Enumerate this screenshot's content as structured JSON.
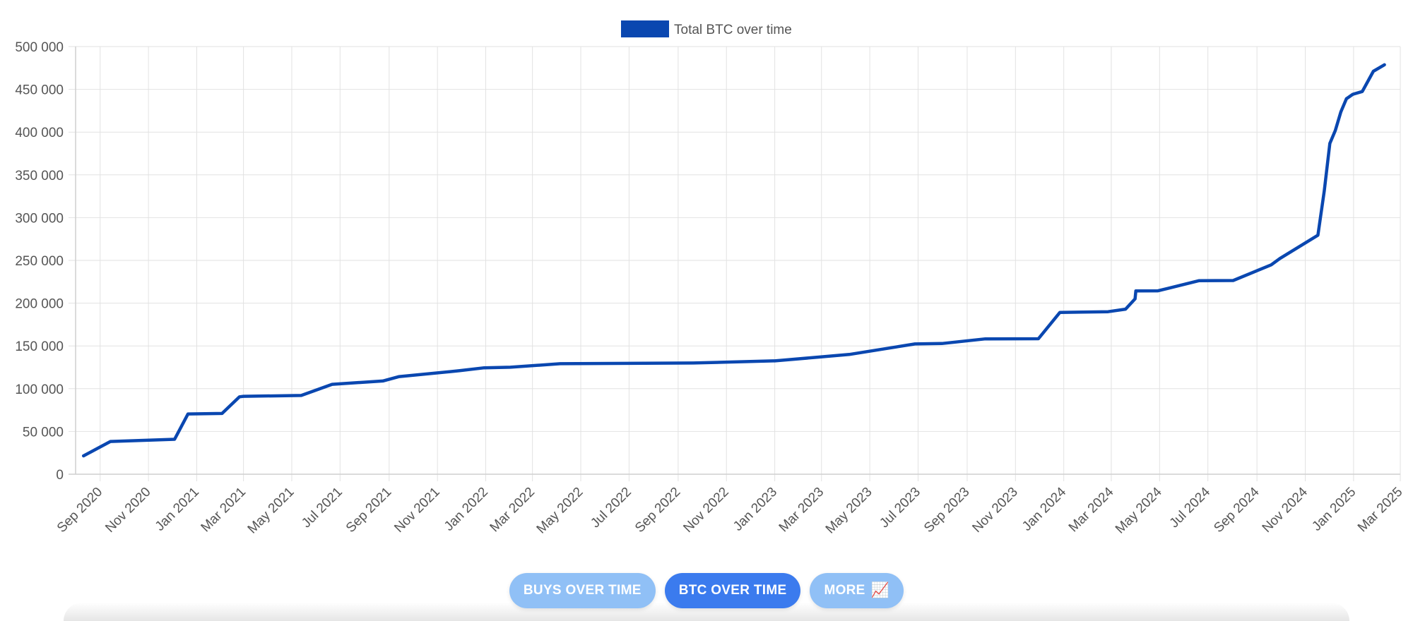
{
  "chart_data": {
    "type": "line",
    "title": "",
    "xlabel": "",
    "ylabel": "",
    "legend": {
      "position": "top-center",
      "entries": [
        "Total BTC over time"
      ]
    },
    "ylim": [
      0,
      500000
    ],
    "xlim": [
      "2020-08-01",
      "2025-03-01"
    ],
    "grid": true,
    "y_ticks": [
      "0",
      "50 000",
      "100 000",
      "150 000",
      "200 000",
      "250 000",
      "300 000",
      "350 000",
      "400 000",
      "450 000",
      "500 000"
    ],
    "x_ticks": [
      "Sep 2020",
      "Nov 2020",
      "Jan 2021",
      "Mar 2021",
      "May 2021",
      "Jul 2021",
      "Sep 2021",
      "Nov 2021",
      "Jan 2022",
      "Mar 2022",
      "May 2022",
      "Jul 2022",
      "Sep 2022",
      "Nov 2022",
      "Jan 2023",
      "Mar 2023",
      "May 2023",
      "Jul 2023",
      "Sep 2023",
      "Nov 2023",
      "Jan 2024",
      "Mar 2024",
      "May 2024",
      "Jul 2024",
      "Sep 2024",
      "Nov 2024",
      "Jan 2025",
      "Mar 2025"
    ],
    "series": [
      {
        "name": "Total BTC over time",
        "color": "#0a47b0",
        "x": [
          "2020-08-11",
          "2020-09-14",
          "2020-12-04",
          "2020-12-21",
          "2021-02-02",
          "2021-02-24",
          "2021-03-01",
          "2021-05-13",
          "2021-06-21",
          "2021-08-24",
          "2021-09-13",
          "2021-11-29",
          "2021-12-30",
          "2022-02-01",
          "2022-04-05",
          "2022-09-20",
          "2022-12-30",
          "2023-01-01",
          "2023-04-05",
          "2023-06-27",
          "2023-07-31",
          "2023-09-24",
          "2023-11-30",
          "2023-12-27",
          "2024-02-26",
          "2024-03-19",
          "2024-03-31",
          "2024-04-01",
          "2024-04-29",
          "2024-06-20",
          "2024-08-02",
          "2024-09-19",
          "2024-09-30",
          "2024-11-17",
          "2024-11-25",
          "2024-12-02",
          "2024-12-09",
          "2024-12-16",
          "2024-12-23",
          "2024-12-31",
          "2025-01-12",
          "2025-01-26",
          "2025-02-09"
        ],
        "values": [
          21454,
          38250,
          40824,
          70470,
          71079,
          90531,
          91064,
          92079,
          105085,
          108992,
          114042,
          121044,
          124391,
          125051,
          129218,
          130000,
          132500,
          132500,
          140000,
          152333,
          152800,
          158245,
          158400,
          189150,
          190000,
          193000,
          205000,
          214246,
          214400,
          226331,
          226500,
          244800,
          252220,
          279420,
          331200,
          386700,
          402100,
          423650,
          439000,
          444262,
          447470,
          471107,
          478740
        ]
      }
    ]
  },
  "buttons": {
    "buys_label": "BUYS OVER TIME",
    "btc_label": "BTC OVER TIME",
    "more_label": "MORE",
    "more_icon": "📈"
  }
}
